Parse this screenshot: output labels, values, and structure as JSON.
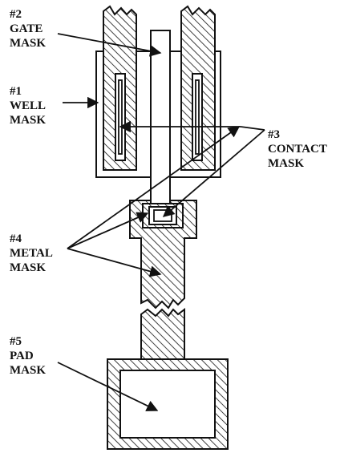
{
  "labels": {
    "gate_mask": {
      "number": "#2",
      "line1": "GATE",
      "line2": "MASK"
    },
    "well_mask": {
      "number": "#1",
      "line1": "WELL",
      "line2": "MASK"
    },
    "contact_mask": {
      "number": "#3",
      "line1": "CONTACT",
      "line2": "MASK"
    },
    "metal_mask": {
      "number": "#4",
      "line1": "METAL",
      "line2": "MASK"
    },
    "pad_mask": {
      "number": "#5",
      "line1": "PAD",
      "line2": "MASK"
    }
  },
  "colors": {
    "line": "#111111",
    "background": "#ffffff"
  }
}
